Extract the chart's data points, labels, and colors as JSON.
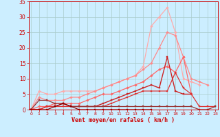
{
  "background_color": "#cceeff",
  "grid_color": "#aacccc",
  "xlabel": "Vent moyen/en rafales ( km/h )",
  "xlabel_color": "#cc0000",
  "xlabel_fontsize": 6,
  "ylabel_ticks": [
    0,
    5,
    10,
    15,
    20,
    25,
    30,
    35
  ],
  "xticks": [
    0,
    1,
    2,
    3,
    4,
    5,
    6,
    7,
    8,
    9,
    10,
    11,
    12,
    13,
    14,
    15,
    16,
    17,
    18,
    19,
    20,
    21,
    22,
    23
  ],
  "xlim": [
    -0.3,
    23.3
  ],
  "ylim": [
    0,
    35
  ],
  "series": [
    {
      "x": [
        0,
        1,
        2,
        3,
        4,
        5,
        6,
        7,
        8,
        9,
        10,
        11,
        12,
        13,
        14,
        15,
        16,
        17,
        18,
        19,
        20,
        21,
        22,
        23
      ],
      "y": [
        0,
        6,
        5,
        5,
        6,
        6,
        6,
        6,
        6,
        7,
        8,
        9,
        10,
        11,
        14,
        27,
        30,
        33,
        25,
        10,
        9,
        8,
        null,
        null
      ],
      "color": "#ffaaaa",
      "lw": 0.9,
      "marker": "D",
      "ms": 1.8
    },
    {
      "x": [
        0,
        1,
        2,
        3,
        4,
        5,
        6,
        7,
        8,
        9,
        10,
        11,
        12,
        13,
        14,
        15,
        16,
        17,
        18,
        19,
        20,
        21,
        22,
        23
      ],
      "y": [
        0,
        4,
        3,
        3,
        3,
        4,
        4,
        5,
        6,
        7,
        8,
        9,
        10,
        11,
        13,
        15,
        20,
        25,
        24,
        17,
        10,
        9,
        8,
        null
      ],
      "color": "#ff8888",
      "lw": 0.9,
      "marker": "D",
      "ms": 1.8
    },
    {
      "x": [
        0,
        1,
        2,
        3,
        4,
        5,
        6,
        7,
        8,
        9,
        10,
        11,
        12,
        13,
        14,
        15,
        16,
        17,
        18,
        19,
        20,
        21,
        22,
        23
      ],
      "y": [
        0,
        1,
        1,
        2,
        2,
        2,
        2,
        3,
        4,
        5,
        5,
        6,
        7,
        8,
        9,
        11,
        13,
        14,
        12,
        17,
        5,
        null,
        null,
        null
      ],
      "color": "#ff6666",
      "lw": 0.9,
      "marker": "D",
      "ms": 1.8
    },
    {
      "x": [
        0,
        1,
        2,
        3,
        4,
        5,
        6,
        7,
        8,
        9,
        10,
        11,
        12,
        13,
        14,
        15,
        16,
        17,
        18,
        19,
        20,
        21,
        22,
        23
      ],
      "y": [
        0,
        0,
        1,
        1,
        2,
        1,
        1,
        1,
        1,
        2,
        3,
        4,
        5,
        6,
        7,
        8,
        7,
        17,
        6,
        5,
        5,
        null,
        null,
        null
      ],
      "color": "#cc2222",
      "lw": 1.0,
      "marker": "s",
      "ms": 1.8
    },
    {
      "x": [
        0,
        1,
        2,
        3,
        4,
        5,
        6,
        7,
        8,
        9,
        10,
        11,
        12,
        13,
        14,
        15,
        16,
        17,
        18,
        19,
        20,
        21,
        22,
        23
      ],
      "y": [
        0,
        0,
        1,
        1,
        1,
        1,
        1,
        1,
        1,
        1,
        2,
        3,
        4,
        5,
        6,
        6,
        6,
        6,
        12,
        7,
        5,
        1,
        1,
        1
      ],
      "color": "#dd3333",
      "lw": 0.9,
      "marker": "s",
      "ms": 1.8
    },
    {
      "x": [
        0,
        1,
        2,
        3,
        4,
        5,
        6,
        7,
        8,
        9,
        10,
        11,
        12,
        13,
        14,
        15,
        16,
        17,
        18,
        19,
        20,
        21,
        22,
        23
      ],
      "y": [
        0,
        3,
        3,
        2,
        2,
        1,
        1,
        1,
        1,
        1,
        1,
        1,
        1,
        1,
        1,
        1,
        1,
        1,
        1,
        1,
        1,
        0,
        0,
        1
      ],
      "color": "#993333",
      "lw": 0.9,
      "marker": "s",
      "ms": 1.8
    },
    {
      "x": [
        0,
        1,
        2,
        3,
        4,
        5,
        6,
        7,
        8,
        9,
        10,
        11,
        12,
        13,
        14,
        15
      ],
      "y": [
        0,
        0,
        0,
        1,
        2,
        1,
        0,
        0,
        0,
        0,
        0,
        0,
        0,
        0,
        0,
        0
      ],
      "color": "#880000",
      "lw": 0.8,
      "marker": "s",
      "ms": 1.5
    }
  ],
  "tick_color": "#cc0000",
  "tick_fontsize": 4.5,
  "ytick_fontsize": 5.5
}
